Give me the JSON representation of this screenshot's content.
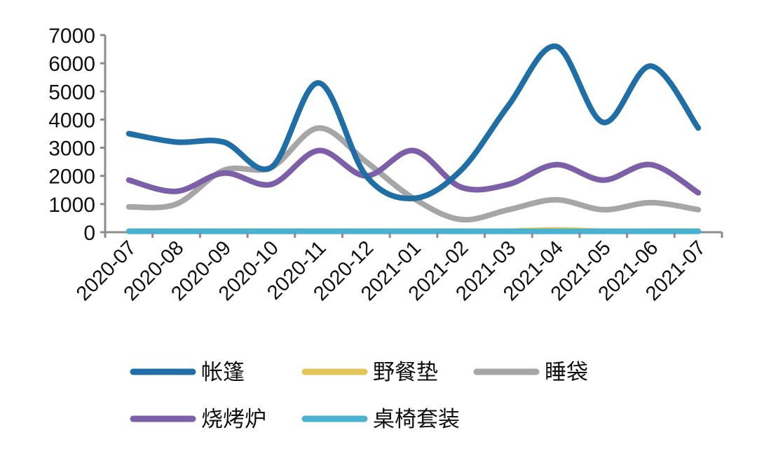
{
  "chart_data": {
    "type": "line",
    "title": "",
    "xlabel": "",
    "ylabel": "",
    "ylim": [
      0,
      7000
    ],
    "yticks": [
      "0",
      "1000",
      "2000",
      "3000",
      "4000",
      "5000",
      "6000",
      "7000"
    ],
    "categories": [
      "2020-07",
      "2020-08",
      "2020-09",
      "2020-10",
      "2020-11",
      "2020-12",
      "2021-01",
      "2021-02",
      "2021-03",
      "2021-04",
      "2021-05",
      "2021-06",
      "2021-07"
    ],
    "grid": false,
    "legend_position": "bottom",
    "smooth": true,
    "series": [
      {
        "name": "帐篷",
        "color": "#1f6ea6",
        "values": [
          3500,
          3200,
          3200,
          2300,
          5300,
          2000,
          1200,
          2200,
          4500,
          6600,
          3900,
          5900,
          3700
        ]
      },
      {
        "name": "野餐垫",
        "color": "#e3c65a",
        "values": [
          40,
          40,
          40,
          40,
          40,
          40,
          40,
          40,
          40,
          80,
          40,
          40,
          40
        ]
      },
      {
        "name": "睡袋",
        "color": "#a6a6a6",
        "values": [
          900,
          1000,
          2200,
          2300,
          3700,
          2500,
          1200,
          450,
          800,
          1150,
          800,
          1050,
          800
        ]
      },
      {
        "name": "烧烤炉",
        "color": "#7d5ea8",
        "values": [
          1850,
          1450,
          2100,
          1700,
          2900,
          2000,
          2900,
          1600,
          1700,
          2400,
          1850,
          2400,
          1400
        ]
      },
      {
        "name": "桌椅套装",
        "color": "#4ab2d1",
        "values": [
          30,
          30,
          30,
          30,
          30,
          30,
          30,
          30,
          30,
          30,
          30,
          30,
          30
        ]
      }
    ]
  }
}
